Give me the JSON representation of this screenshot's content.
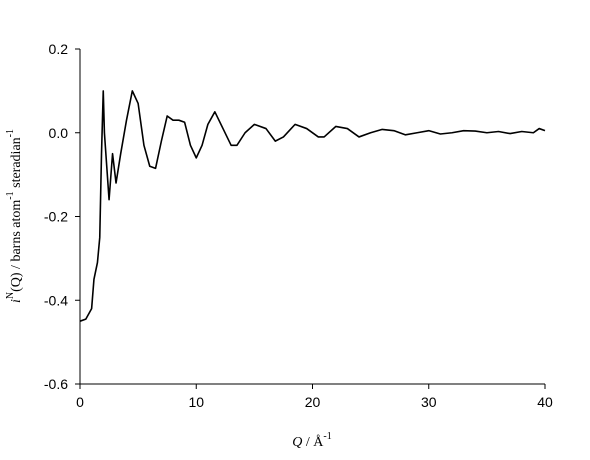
{
  "chart_data": {
    "type": "line",
    "xlabel_parts": [
      "Q",
      " / Å",
      "-1"
    ],
    "ylabel_parts": [
      "i",
      "N",
      "(Q) / barns atom",
      "-1",
      " steradian",
      "-1"
    ],
    "x": [
      0,
      0.5,
      1,
      1.2,
      1.5,
      1.7,
      1.85,
      2.0,
      2.1,
      2.3,
      2.5,
      2.8,
      3.1,
      3.5,
      4.0,
      4.5,
      5.0,
      5.5,
      6.0,
      6.5,
      7.0,
      7.5,
      8.0,
      8.5,
      9.0,
      9.5,
      10.0,
      10.5,
      11.0,
      11.6,
      12.3,
      13.0,
      13.5,
      14.2,
      15,
      16,
      16.8,
      17.5,
      18.5,
      19.5,
      20.5,
      21,
      22,
      23,
      24,
      25,
      26,
      27,
      28,
      29,
      30,
      31,
      32,
      33,
      34,
      35,
      36,
      37,
      38,
      39,
      39.5,
      40
    ],
    "series": [
      {
        "color": "#000000",
        "values": [
          -0.45,
          -0.445,
          -0.42,
          -0.35,
          -0.31,
          -0.25,
          -0.05,
          0.1,
          0.0,
          -0.08,
          -0.16,
          -0.05,
          -0.12,
          -0.05,
          0.03,
          0.1,
          0.07,
          -0.03,
          -0.08,
          -0.085,
          -0.02,
          0.04,
          0.03,
          0.03,
          0.025,
          -0.03,
          -0.06,
          -0.03,
          0.02,
          0.05,
          0.01,
          -0.03,
          -0.03,
          0.0,
          0.02,
          0.01,
          -0.02,
          -0.01,
          0.02,
          0.01,
          -0.01,
          -0.01,
          0.015,
          0.01,
          -0.01,
          0.0,
          0.008,
          0.005,
          -0.005,
          0.0,
          0.005,
          -0.003,
          0.0,
          0.005,
          0.004,
          0.0,
          0.003,
          -0.002,
          0.003,
          0.0,
          0.01,
          0.005
        ]
      }
    ],
    "xlim": [
      0,
      40
    ],
    "xticks": [
      0,
      10,
      20,
      30,
      40
    ],
    "ylim": [
      -0.6,
      0.2
    ],
    "yticks": [
      -0.6,
      -0.4,
      -0.2,
      {
        "value": 0,
        "label": "0.0"
      },
      0.2
    ]
  }
}
